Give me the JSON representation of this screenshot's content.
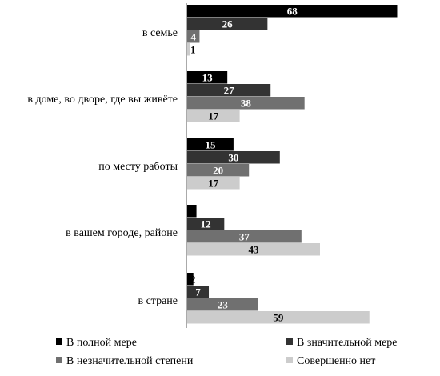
{
  "chart_data": {
    "type": "bar",
    "orientation": "horizontal",
    "categories": [
      "в семье",
      "в доме, во дворе, где вы живёте",
      "по месту работы",
      "в вашем городе, районе",
      "в стране"
    ],
    "series": [
      {
        "name": "В полной мере",
        "color": "#000000",
        "label_color": "#ffffff",
        "values": [
          68,
          13,
          15,
          3,
          2
        ]
      },
      {
        "name": "В значительной мере",
        "color": "#333333",
        "label_color": "#ffffff",
        "values": [
          26,
          27,
          30,
          12,
          7
        ]
      },
      {
        "name": "В незначительной степени",
        "color": "#707070",
        "label_color": "#ffffff",
        "values": [
          4,
          38,
          20,
          37,
          23
        ]
      },
      {
        "name": "Совершенно нет",
        "color": "#cccccc",
        "label_color": "#000000",
        "values": [
          1,
          17,
          17,
          43,
          59
        ]
      }
    ],
    "xlim": [
      0,
      70
    ],
    "grid": false,
    "data_labels": true,
    "legend_position": "bottom"
  }
}
